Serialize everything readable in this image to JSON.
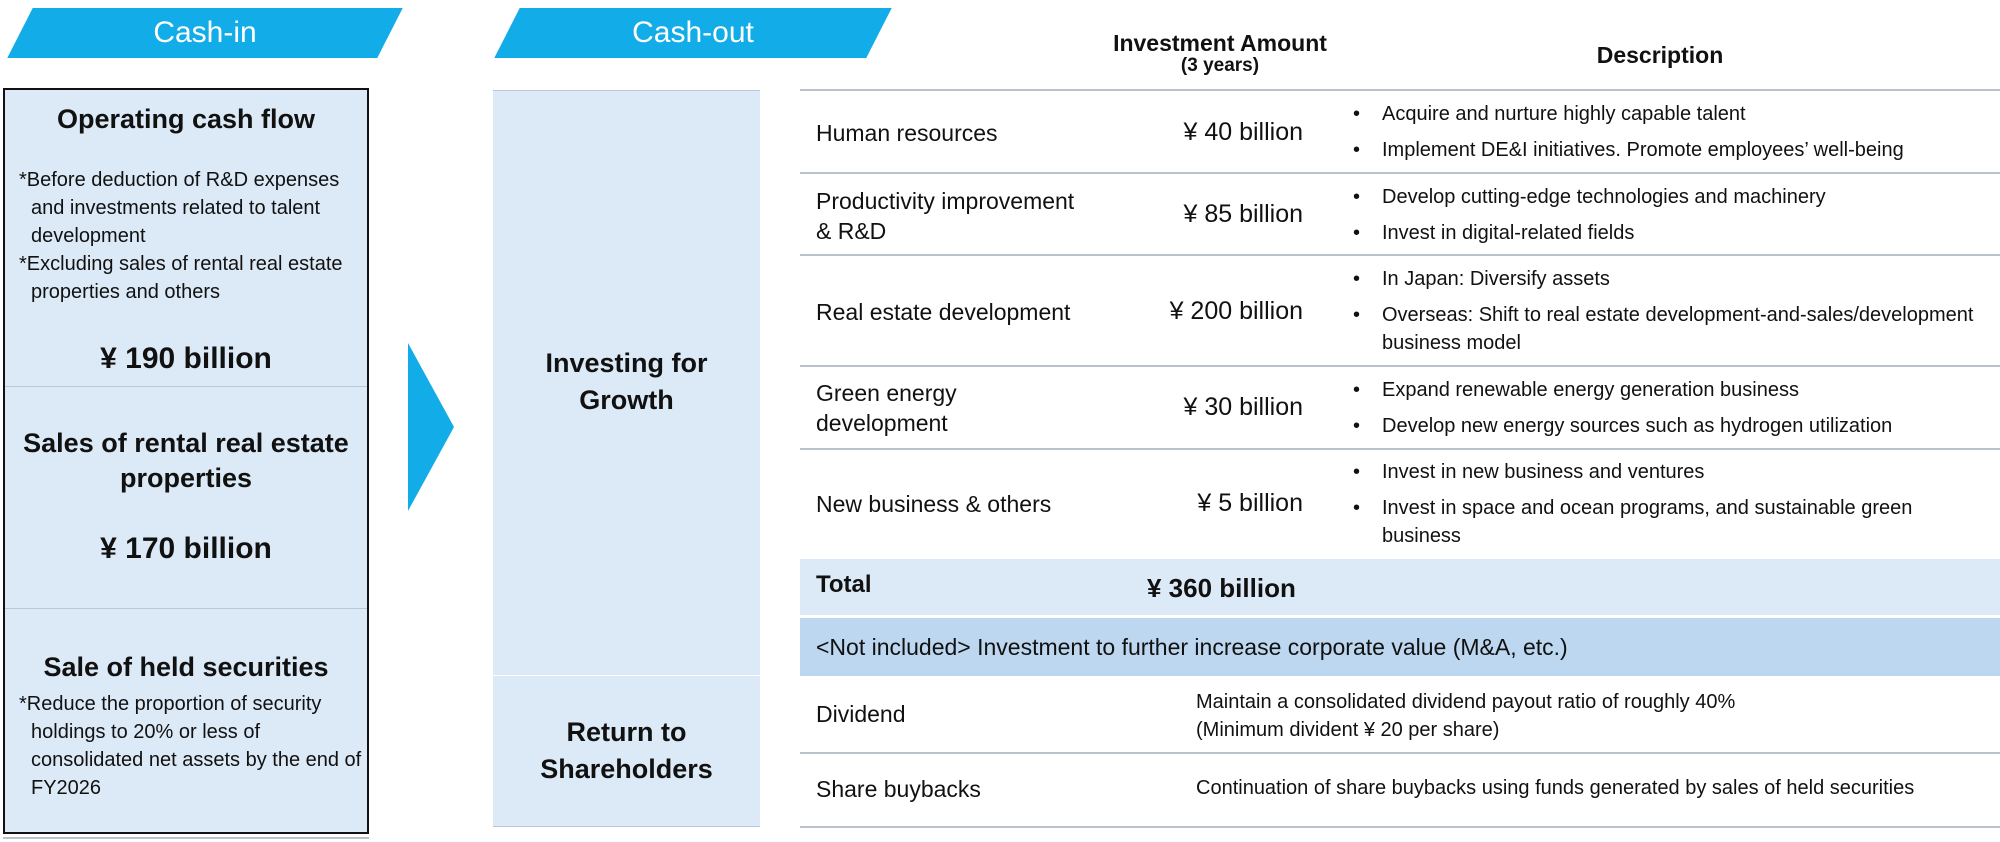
{
  "cash_in": {
    "header": "Cash-in",
    "operating": {
      "title": "Operating cash flow",
      "note1_a": "*Before deduction of R&D expenses",
      "note1_b": "and investments related to talent",
      "note1_c": "development",
      "note2_a": "*Excluding sales of rental real estate",
      "note2_b": "properties and others",
      "amount": "¥ 190 billion"
    },
    "rental": {
      "title_a": "Sales of rental real estate",
      "title_b": "properties",
      "amount": "¥ 170 billion"
    },
    "securities": {
      "title": "Sale of held securities",
      "note_a": "*Reduce the proportion of security",
      "note_b": "holdings to 20% or less of",
      "note_c": "consolidated net assets by the end of",
      "note_d": "FY2026"
    }
  },
  "cash_out": {
    "header": "Cash-out",
    "growth_label_a": "Investing for",
    "growth_label_b": "Growth",
    "return_label_a": "Return to",
    "return_label_b": "Shareholders"
  },
  "table": {
    "col_amount_a": "Investment Amount",
    "col_amount_b": "(3 years)",
    "col_description": "Description",
    "rows": [
      {
        "category": "Human resources",
        "amount": "¥ 40 billion",
        "desc": [
          "Acquire and nurture highly capable talent",
          "Implement DE&I initiatives. Promote employees’ well-being"
        ]
      },
      {
        "category_a": "Productivity improvement",
        "category_b": "& R&D",
        "amount": "¥ 85 billion",
        "desc": [
          "Develop cutting-edge technologies and machinery",
          "Invest in digital-related fields"
        ]
      },
      {
        "category": "Real estate development",
        "amount": "¥ 200 billion",
        "desc": [
          "In Japan: Diversify assets",
          "Overseas: Shift to real estate development-and-sales/development business model"
        ]
      },
      {
        "category_a": "Green energy",
        "category_b": "development",
        "amount": "¥ 30 billion",
        "desc": [
          "Expand renewable energy generation business",
          "Develop new energy sources such as hydrogen utilization"
        ]
      },
      {
        "category": "New business & others",
        "amount": "¥ 5 billion",
        "desc": [
          "Invest in new business and ventures",
          "Invest in space and ocean programs, and sustainable green business"
        ]
      }
    ],
    "total_label": "Total",
    "total_amount": "¥ 360 billion",
    "not_included": "<Not included> Investment to further increase corporate value (M&A, etc.)",
    "dividend_label": "Dividend",
    "dividend_desc_a": "Maintain a consolidated dividend payout ratio of roughly 40%",
    "dividend_desc_b": "(Minimum divident ¥ 20 per share)",
    "buyback_label": "Share buybacks",
    "buyback_desc": "Continuation of share buybacks using funds generated by sales of held securities"
  },
  "colors": {
    "accent": "#12ade8",
    "panel": "#dce9f6",
    "band": "#bcd7ef"
  }
}
